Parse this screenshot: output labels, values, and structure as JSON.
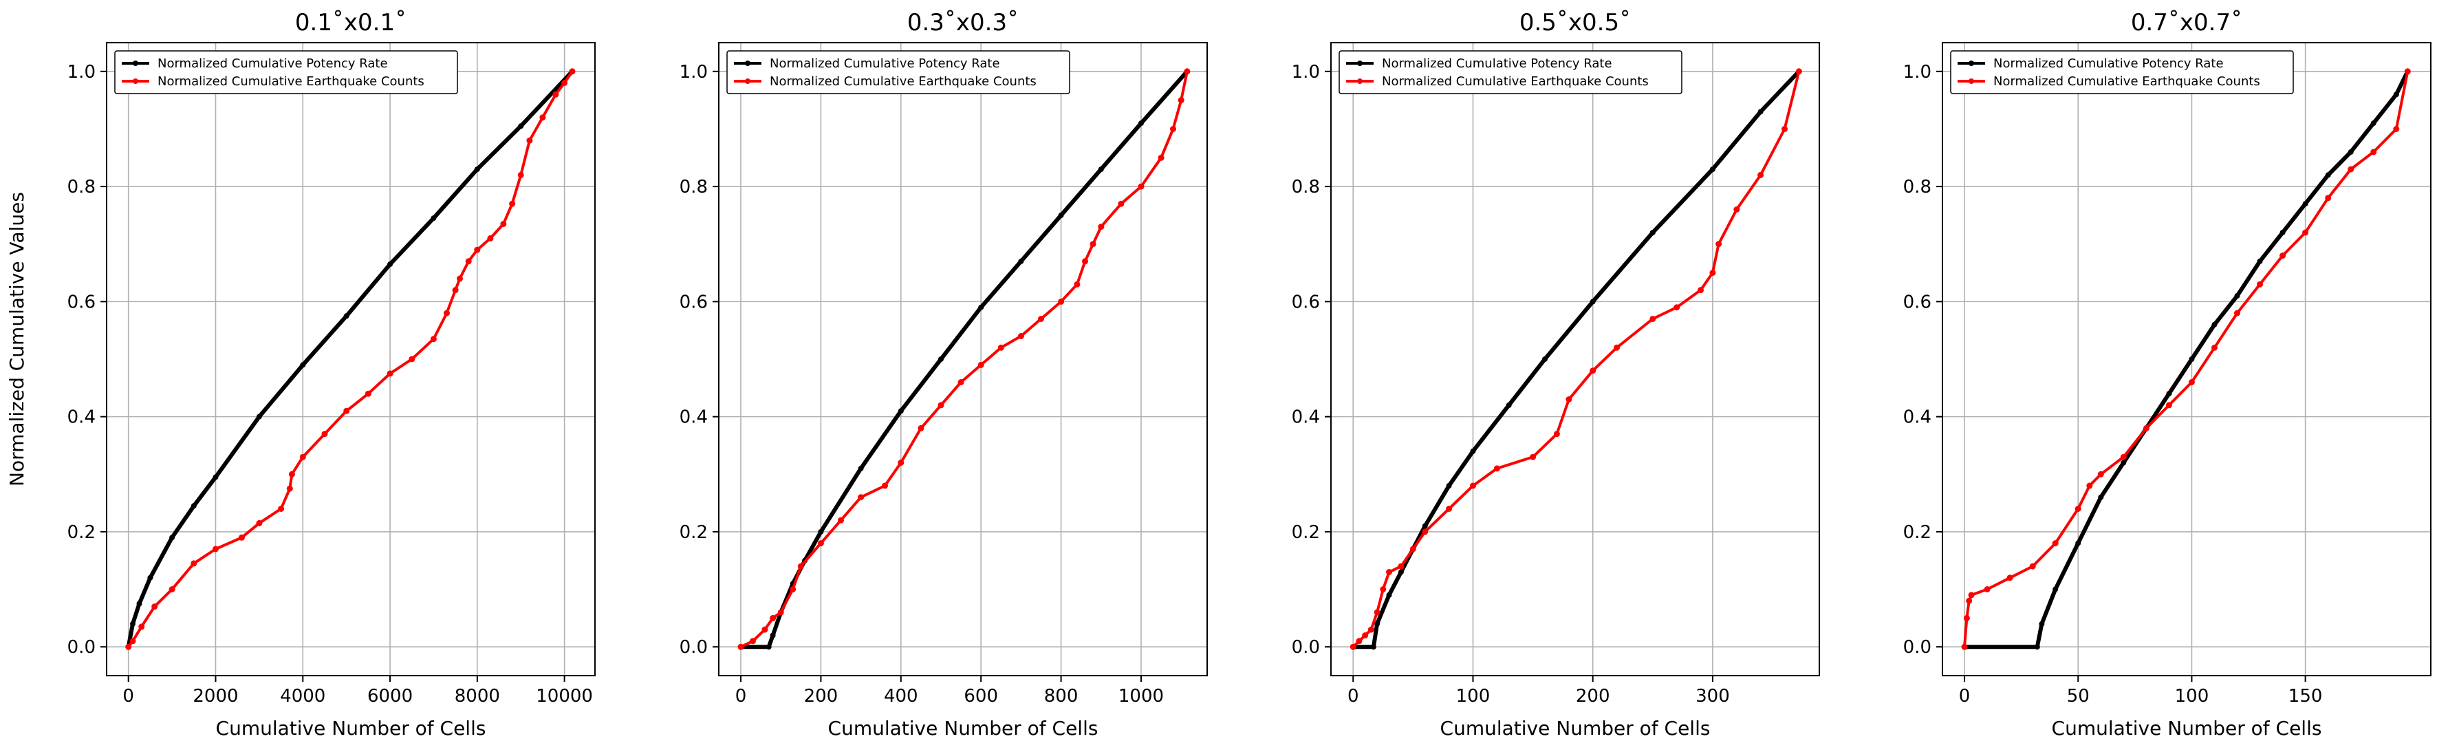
{
  "figure": {
    "ylabel": "Normalized Cumulative Values",
    "xlabel": "Cumulative Number of Cells"
  },
  "legend": {
    "potency_label": "Normalized Cumulative Potency Rate",
    "counts_label": "Normalized Cumulative Earthquake Counts",
    "placement": "top-left"
  },
  "colors": {
    "potency": "#000000",
    "counts": "#ff0000",
    "grid": "#b0b0b0"
  },
  "chart_data": [
    {
      "type": "line",
      "title": "0.1˚x0.1˚",
      "xlabel": "Cumulative Number of Cells",
      "ylabel": "Normalized Cumulative Values",
      "xlim": [
        -500,
        10700
      ],
      "ylim": [
        -0.05,
        1.05
      ],
      "xticks": [
        0,
        2000,
        4000,
        6000,
        8000,
        10000
      ],
      "xtick_labels": [
        "0",
        "2000",
        "4000",
        "6000",
        "8000",
        "10000"
      ],
      "yticks": [
        0.0,
        0.2,
        0.4,
        0.6,
        0.8,
        1.0
      ],
      "ytick_labels": [
        "0.0",
        "0.2",
        "0.4",
        "0.6",
        "0.8",
        "1.0"
      ],
      "grid": true,
      "series": [
        {
          "name": "Normalized Cumulative Potency Rate",
          "color": "#000000",
          "x": [
            0,
            100,
            250,
            500,
            1000,
            1500,
            2000,
            3000,
            4000,
            5000,
            6000,
            7000,
            8000,
            9000,
            10180
          ],
          "y": [
            0.0,
            0.04,
            0.075,
            0.12,
            0.19,
            0.245,
            0.295,
            0.4,
            0.49,
            0.575,
            0.665,
            0.745,
            0.83,
            0.905,
            1.0
          ]
        },
        {
          "name": "Normalized Cumulative Earthquake Counts",
          "color": "#ff0000",
          "x": [
            0,
            100,
            300,
            600,
            1000,
            1500,
            2000,
            2600,
            3000,
            3500,
            3700,
            3750,
            4000,
            4500,
            5000,
            5500,
            6000,
            6500,
            7000,
            7300,
            7500,
            7600,
            7800,
            8000,
            8300,
            8600,
            8800,
            9000,
            9200,
            9500,
            9800,
            10000,
            10180
          ],
          "y": [
            0.0,
            0.01,
            0.035,
            0.07,
            0.1,
            0.145,
            0.17,
            0.19,
            0.215,
            0.24,
            0.275,
            0.3,
            0.33,
            0.37,
            0.41,
            0.44,
            0.475,
            0.5,
            0.535,
            0.58,
            0.62,
            0.64,
            0.67,
            0.69,
            0.71,
            0.735,
            0.77,
            0.82,
            0.88,
            0.92,
            0.96,
            0.98,
            1.0
          ]
        }
      ]
    },
    {
      "type": "line",
      "title": "0.3˚x0.3˚",
      "xlabel": "Cumulative Number of Cells",
      "ylabel": "",
      "xlim": [
        -55,
        1165
      ],
      "ylim": [
        -0.05,
        1.05
      ],
      "xticks": [
        0,
        200,
        400,
        600,
        800,
        1000
      ],
      "xtick_labels": [
        "0",
        "200",
        "400",
        "600",
        "800",
        "1000"
      ],
      "yticks": [
        0.0,
        0.2,
        0.4,
        0.6,
        0.8,
        1.0
      ],
      "ytick_labels": [
        "0.0",
        "0.2",
        "0.4",
        "0.6",
        "0.8",
        "1.0"
      ],
      "grid": true,
      "series": [
        {
          "name": "Normalized Cumulative Potency Rate",
          "color": "#000000",
          "x": [
            0,
            70,
            80,
            100,
            130,
            160,
            200,
            300,
            400,
            500,
            600,
            700,
            800,
            900,
            1000,
            1115
          ],
          "y": [
            0.0,
            0.0,
            0.02,
            0.06,
            0.11,
            0.15,
            0.2,
            0.31,
            0.41,
            0.5,
            0.59,
            0.67,
            0.75,
            0.83,
            0.91,
            1.0
          ]
        },
        {
          "name": "Normalized Cumulative Earthquake Counts",
          "color": "#ff0000",
          "x": [
            0,
            30,
            60,
            80,
            100,
            130,
            150,
            200,
            250,
            300,
            360,
            400,
            450,
            500,
            550,
            600,
            650,
            700,
            750,
            800,
            840,
            860,
            880,
            900,
            950,
            1000,
            1050,
            1080,
            1100,
            1115
          ],
          "y": [
            0.0,
            0.01,
            0.03,
            0.05,
            0.06,
            0.1,
            0.14,
            0.18,
            0.22,
            0.26,
            0.28,
            0.32,
            0.38,
            0.42,
            0.46,
            0.49,
            0.52,
            0.54,
            0.57,
            0.6,
            0.63,
            0.67,
            0.7,
            0.73,
            0.77,
            0.8,
            0.85,
            0.9,
            0.95,
            1.0
          ]
        }
      ]
    },
    {
      "type": "line",
      "title": "0.5˚x0.5˚",
      "xlabel": "Cumulative Number of Cells",
      "ylabel": "",
      "xlim": [
        -18.5,
        389
      ],
      "ylim": [
        -0.05,
        1.05
      ],
      "xticks": [
        0,
        100,
        200,
        300
      ],
      "xtick_labels": [
        "0",
        "100",
        "200",
        "300"
      ],
      "yticks": [
        0.0,
        0.2,
        0.4,
        0.6,
        0.8,
        1.0
      ],
      "ytick_labels": [
        "0.0",
        "0.2",
        "0.4",
        "0.6",
        "0.8",
        "1.0"
      ],
      "grid": true,
      "series": [
        {
          "name": "Normalized Cumulative Potency Rate",
          "color": "#000000",
          "x": [
            0,
            17,
            20,
            30,
            40,
            50,
            60,
            80,
            100,
            130,
            160,
            200,
            250,
            300,
            340,
            372
          ],
          "y": [
            0.0,
            0.0,
            0.04,
            0.09,
            0.13,
            0.17,
            0.21,
            0.28,
            0.34,
            0.42,
            0.5,
            0.6,
            0.72,
            0.83,
            0.93,
            1.0
          ]
        },
        {
          "name": "Normalized Cumulative Earthquake Counts",
          "color": "#ff0000",
          "x": [
            0,
            5,
            10,
            15,
            20,
            25,
            30,
            40,
            50,
            60,
            80,
            100,
            120,
            150,
            170,
            180,
            200,
            220,
            250,
            270,
            290,
            300,
            305,
            320,
            340,
            360,
            372
          ],
          "y": [
            0.0,
            0.01,
            0.02,
            0.03,
            0.06,
            0.1,
            0.13,
            0.14,
            0.17,
            0.2,
            0.24,
            0.28,
            0.31,
            0.33,
            0.37,
            0.43,
            0.48,
            0.52,
            0.57,
            0.59,
            0.62,
            0.65,
            0.7,
            0.76,
            0.82,
            0.9,
            1.0
          ]
        }
      ]
    },
    {
      "type": "line",
      "title": "0.7˚x0.7˚",
      "xlabel": "Cumulative Number of Cells",
      "ylabel": "",
      "xlim": [
        -9.7,
        205.2
      ],
      "ylim": [
        -0.05,
        1.05
      ],
      "xticks": [
        0,
        50,
        100,
        150
      ],
      "xtick_labels": [
        "0",
        "50",
        "100",
        "150"
      ],
      "yticks": [
        0.0,
        0.2,
        0.4,
        0.6,
        0.8,
        1.0
      ],
      "ytick_labels": [
        "0.0",
        "0.2",
        "0.4",
        "0.6",
        "0.8",
        "1.0"
      ],
      "grid": true,
      "series": [
        {
          "name": "Normalized Cumulative Potency Rate",
          "color": "#000000",
          "x": [
            0,
            32,
            34,
            40,
            50,
            60,
            70,
            80,
            90,
            100,
            110,
            120,
            130,
            140,
            150,
            160,
            170,
            180,
            190,
            195
          ],
          "y": [
            0.0,
            0.0,
            0.04,
            0.1,
            0.18,
            0.26,
            0.32,
            0.38,
            0.44,
            0.5,
            0.56,
            0.61,
            0.67,
            0.72,
            0.77,
            0.82,
            0.86,
            0.91,
            0.96,
            1.0
          ]
        },
        {
          "name": "Normalized Cumulative Earthquake Counts",
          "color": "#ff0000",
          "x": [
            0,
            1,
            2,
            3,
            10,
            20,
            30,
            40,
            50,
            55,
            60,
            70,
            80,
            90,
            100,
            110,
            120,
            130,
            140,
            150,
            160,
            170,
            180,
            190,
            195
          ],
          "y": [
            0.0,
            0.05,
            0.08,
            0.09,
            0.1,
            0.12,
            0.14,
            0.18,
            0.24,
            0.28,
            0.3,
            0.33,
            0.38,
            0.42,
            0.46,
            0.52,
            0.58,
            0.63,
            0.68,
            0.72,
            0.78,
            0.83,
            0.86,
            0.9,
            1.0
          ]
        }
      ]
    }
  ]
}
